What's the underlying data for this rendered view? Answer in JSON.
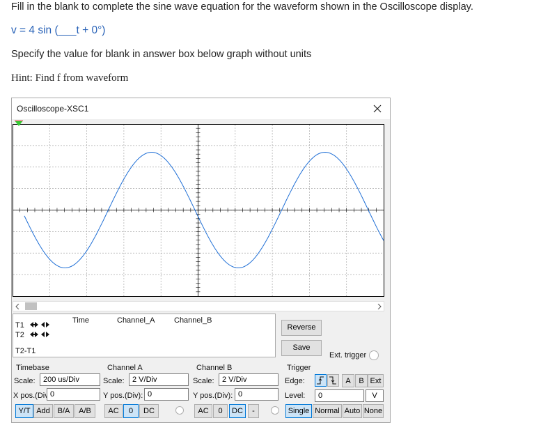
{
  "question": {
    "instruction": "Fill in the blank to complete the sine wave equation for the waveform shown in the Oscilloscope display.",
    "equation": "v = 4 sin (___t + 0°)",
    "answer_instruction": "Specify the value for blank in answer box below graph without units",
    "hint": "Hint: Find f from waveform"
  },
  "window": {
    "title": "Oscilloscope-XSC1",
    "readout": {
      "headers": [
        "Time",
        "Channel_A",
        "Channel_B"
      ],
      "rows": [
        "T1",
        "T2",
        "T2-T1"
      ]
    },
    "reverse": "Reverse",
    "save": "Save",
    "ext_trigger": "Ext. trigger",
    "timebase": {
      "title": "Timebase",
      "scale_label": "Scale:",
      "scale": "200 us/Div",
      "xpos_label": "X pos.(Div):",
      "xpos": "0",
      "modes": [
        "Y/T",
        "Add",
        "B/A",
        "A/B"
      ]
    },
    "channel_a": {
      "title": "Channel A",
      "scale_label": "Scale:",
      "scale": "2 V/Div",
      "ypos_label": "Y pos.(Div):",
      "ypos": "0",
      "coupling": [
        "AC",
        "0",
        "DC"
      ]
    },
    "channel_b": {
      "title": "Channel B",
      "scale_label": "Scale:",
      "scale": "2 V/Div",
      "ypos_label": "Y pos.(Div):",
      "ypos": "0",
      "coupling": [
        "AC",
        "0",
        "DC",
        "-"
      ]
    },
    "trigger": {
      "title": "Trigger",
      "edge_label": "Edge:",
      "sources": [
        "A",
        "B",
        "Ext"
      ],
      "level_label": "Level:",
      "level": "0",
      "level_unit": "V",
      "types": [
        "Single",
        "Normal",
        "Auto",
        "None"
      ]
    }
  }
}
